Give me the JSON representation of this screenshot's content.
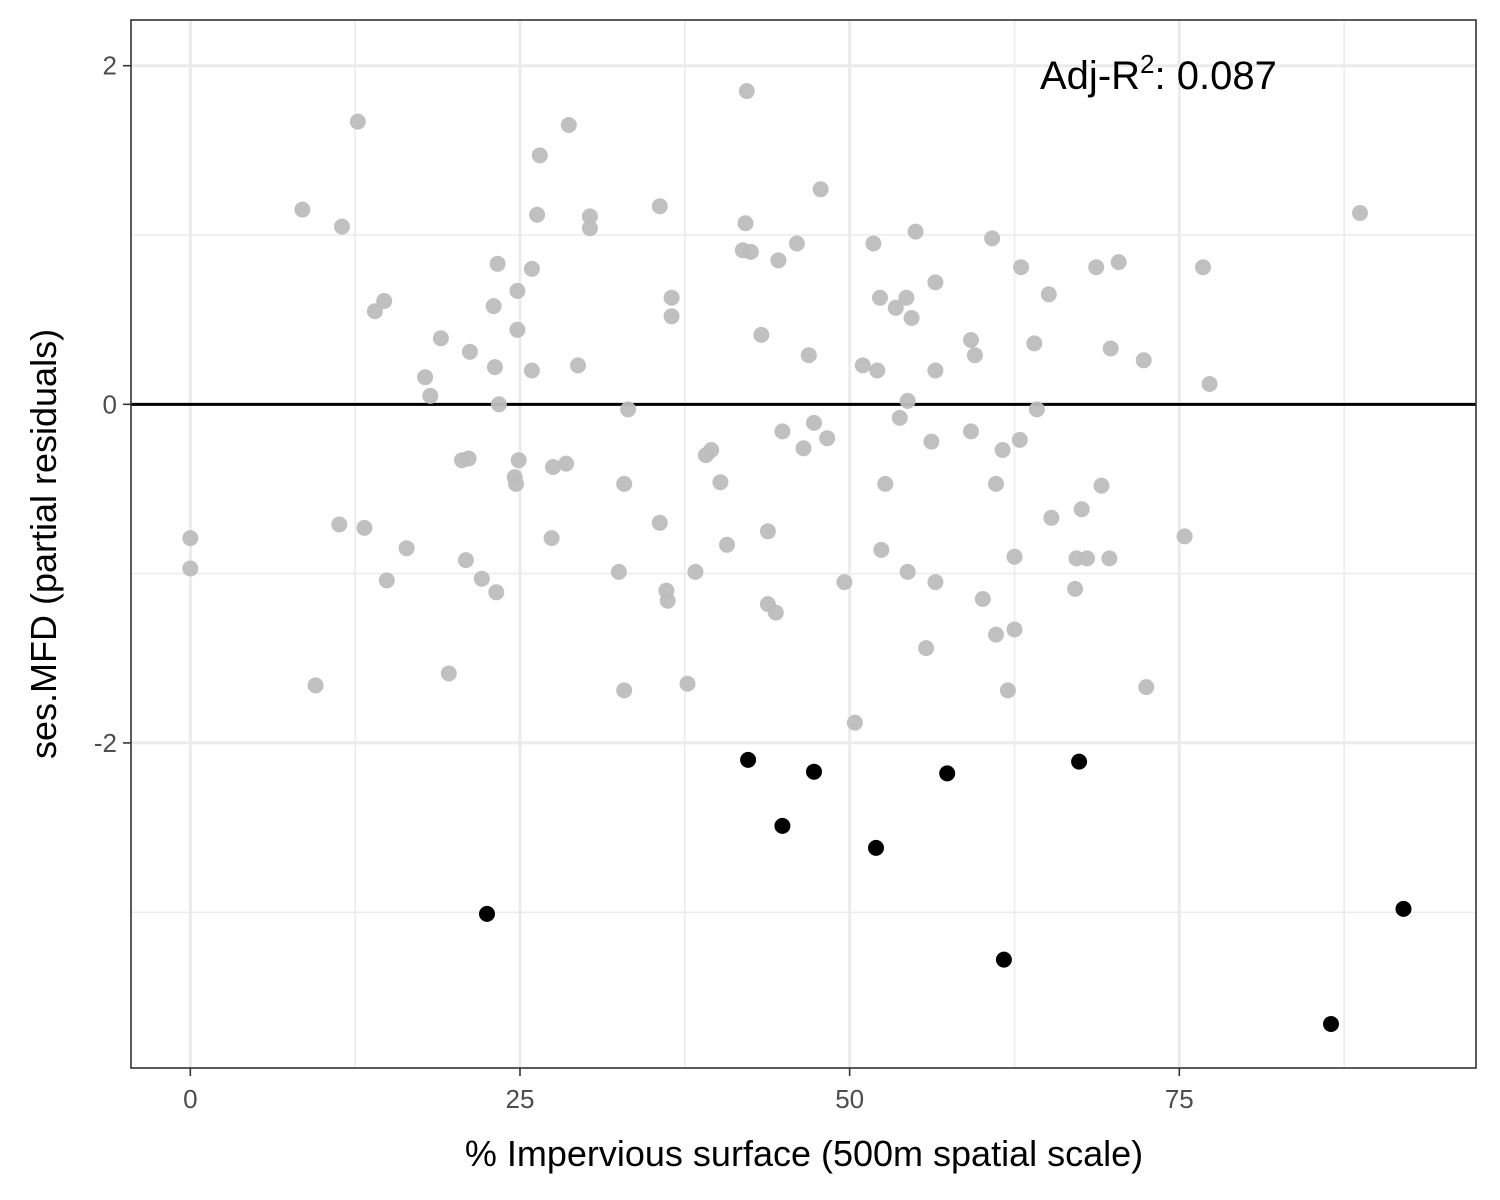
{
  "chart_data": {
    "type": "scatter",
    "title": "",
    "xlabel": "% Impervious surface (500m spatial scale)",
    "ylabel": "ses.MFD (partial residuals)",
    "xlim": [
      -4.5,
      97.5
    ],
    "ylim": [
      -3.92,
      2.27
    ],
    "x_ticks": [
      0,
      25,
      50,
      75
    ],
    "x_tick_labels": [
      "0",
      "25",
      "50",
      "75"
    ],
    "x_minor_ticks": [
      12.5,
      37.5,
      62.5,
      87.5
    ],
    "y_ticks": [
      2,
      0,
      -2
    ],
    "y_tick_labels": [
      "2",
      "0",
      "-2"
    ],
    "y_minor_ticks": [
      1,
      -1,
      -3
    ],
    "grid": true,
    "reference_line": {
      "y": 0,
      "color": "#000000"
    },
    "annotation": {
      "prefix": "Adj-R",
      "superscript": "2",
      "suffix": ": 0.087"
    },
    "colors": {
      "background": "#ffffff",
      "grid": "#ebebeb",
      "points_grey": "#bdbdbd",
      "points_black": "#000000",
      "panel_border": "#333333"
    },
    "series": [
      {
        "color": "#bdbdbd",
        "points": [
          [
            0.0,
            -0.79
          ],
          [
            0.0,
            -0.97
          ],
          [
            8.5,
            1.15
          ],
          [
            9.5,
            -1.66
          ],
          [
            11.3,
            -0.71
          ],
          [
            11.5,
            1.05
          ],
          [
            12.7,
            1.67
          ],
          [
            13.2,
            -0.73
          ],
          [
            14.0,
            0.55
          ],
          [
            14.7,
            0.61
          ],
          [
            14.9,
            -1.04
          ],
          [
            16.4,
            -0.85
          ],
          [
            17.8,
            0.16
          ],
          [
            18.2,
            0.05
          ],
          [
            19.0,
            0.39
          ],
          [
            19.6,
            -1.59
          ],
          [
            20.6,
            -0.33
          ],
          [
            20.9,
            -0.92
          ],
          [
            21.1,
            -0.32
          ],
          [
            21.2,
            0.31
          ],
          [
            22.1,
            -1.03
          ],
          [
            23.0,
            0.58
          ],
          [
            23.1,
            0.22
          ],
          [
            23.2,
            -1.11
          ],
          [
            23.3,
            0.83
          ],
          [
            23.4,
            0.0
          ],
          [
            24.6,
            -0.43
          ],
          [
            24.7,
            -0.47
          ],
          [
            24.8,
            0.67
          ],
          [
            24.8,
            0.44
          ],
          [
            24.9,
            -0.33
          ],
          [
            25.9,
            0.8
          ],
          [
            25.9,
            0.2
          ],
          [
            26.3,
            1.12
          ],
          [
            26.5,
            1.47
          ],
          [
            27.5,
            -0.37
          ],
          [
            27.4,
            -0.79
          ],
          [
            28.5,
            -0.35
          ],
          [
            28.7,
            1.65
          ],
          [
            29.4,
            0.23
          ],
          [
            30.3,
            1.11
          ],
          [
            30.3,
            1.04
          ],
          [
            32.5,
            -0.99
          ],
          [
            32.9,
            -0.47
          ],
          [
            32.9,
            -1.69
          ],
          [
            33.2,
            -0.03
          ],
          [
            35.6,
            -0.7
          ],
          [
            35.6,
            1.17
          ],
          [
            36.1,
            -1.1
          ],
          [
            36.2,
            -1.16
          ],
          [
            36.5,
            0.63
          ],
          [
            36.5,
            0.52
          ],
          [
            37.7,
            -1.65
          ],
          [
            38.3,
            -0.99
          ],
          [
            39.1,
            -0.3
          ],
          [
            39.5,
            -0.27
          ],
          [
            40.2,
            -0.46
          ],
          [
            40.7,
            -0.83
          ],
          [
            41.9,
            0.91
          ],
          [
            42.1,
            1.07
          ],
          [
            42.2,
            1.85
          ],
          [
            42.5,
            0.9
          ],
          [
            43.3,
            0.41
          ],
          [
            43.8,
            -0.75
          ],
          [
            43.8,
            -1.18
          ],
          [
            44.4,
            -1.23
          ],
          [
            44.6,
            0.85
          ],
          [
            44.9,
            -0.16
          ],
          [
            46.0,
            0.95
          ],
          [
            46.5,
            -0.26
          ],
          [
            46.9,
            0.29
          ],
          [
            47.3,
            -0.11
          ],
          [
            47.8,
            1.27
          ],
          [
            48.3,
            -0.2
          ],
          [
            49.6,
            -1.05
          ],
          [
            50.4,
            -1.88
          ],
          [
            51.0,
            0.23
          ],
          [
            51.8,
            0.95
          ],
          [
            52.1,
            0.2
          ],
          [
            52.3,
            0.63
          ],
          [
            52.4,
            -0.86
          ],
          [
            52.7,
            -0.47
          ],
          [
            53.5,
            0.57
          ],
          [
            53.8,
            -0.08
          ],
          [
            54.3,
            0.63
          ],
          [
            54.4,
            0.02
          ],
          [
            54.4,
            -0.99
          ],
          [
            54.7,
            0.51
          ],
          [
            55.0,
            1.02
          ],
          [
            55.8,
            -1.44
          ],
          [
            56.2,
            -0.22
          ],
          [
            56.5,
            0.72
          ],
          [
            56.5,
            0.2
          ],
          [
            56.5,
            -1.05
          ],
          [
            59.2,
            -0.16
          ],
          [
            59.2,
            0.38
          ],
          [
            59.5,
            0.29
          ],
          [
            60.1,
            -1.15
          ],
          [
            60.8,
            0.98
          ],
          [
            61.1,
            -0.47
          ],
          [
            61.1,
            -1.36
          ],
          [
            61.6,
            -0.27
          ],
          [
            62.0,
            -1.69
          ],
          [
            62.5,
            -0.9
          ],
          [
            62.5,
            -1.33
          ],
          [
            62.9,
            -0.21
          ],
          [
            63.0,
            0.81
          ],
          [
            64.0,
            0.36
          ],
          [
            64.2,
            -0.03
          ],
          [
            65.1,
            0.65
          ],
          [
            65.3,
            -0.67
          ],
          [
            67.1,
            -1.09
          ],
          [
            67.2,
            -0.91
          ],
          [
            67.6,
            -0.62
          ],
          [
            68.0,
            -0.91
          ],
          [
            68.7,
            0.81
          ],
          [
            69.1,
            -0.48
          ],
          [
            69.7,
            -0.91
          ],
          [
            69.8,
            0.33
          ],
          [
            70.4,
            0.84
          ],
          [
            72.3,
            0.26
          ],
          [
            72.5,
            -1.67
          ],
          [
            75.4,
            -0.78
          ],
          [
            76.8,
            0.81
          ],
          [
            77.3,
            0.12
          ],
          [
            88.7,
            1.13
          ]
        ]
      },
      {
        "color": "#000000",
        "points": [
          [
            22.5,
            -3.01
          ],
          [
            42.3,
            -2.1
          ],
          [
            44.9,
            -2.49
          ],
          [
            47.3,
            -2.17
          ],
          [
            52.0,
            -2.62
          ],
          [
            57.4,
            -2.18
          ],
          [
            61.7,
            -3.28
          ],
          [
            67.4,
            -2.11
          ],
          [
            86.5,
            -3.66
          ],
          [
            92.0,
            -2.98
          ]
        ]
      }
    ]
  }
}
